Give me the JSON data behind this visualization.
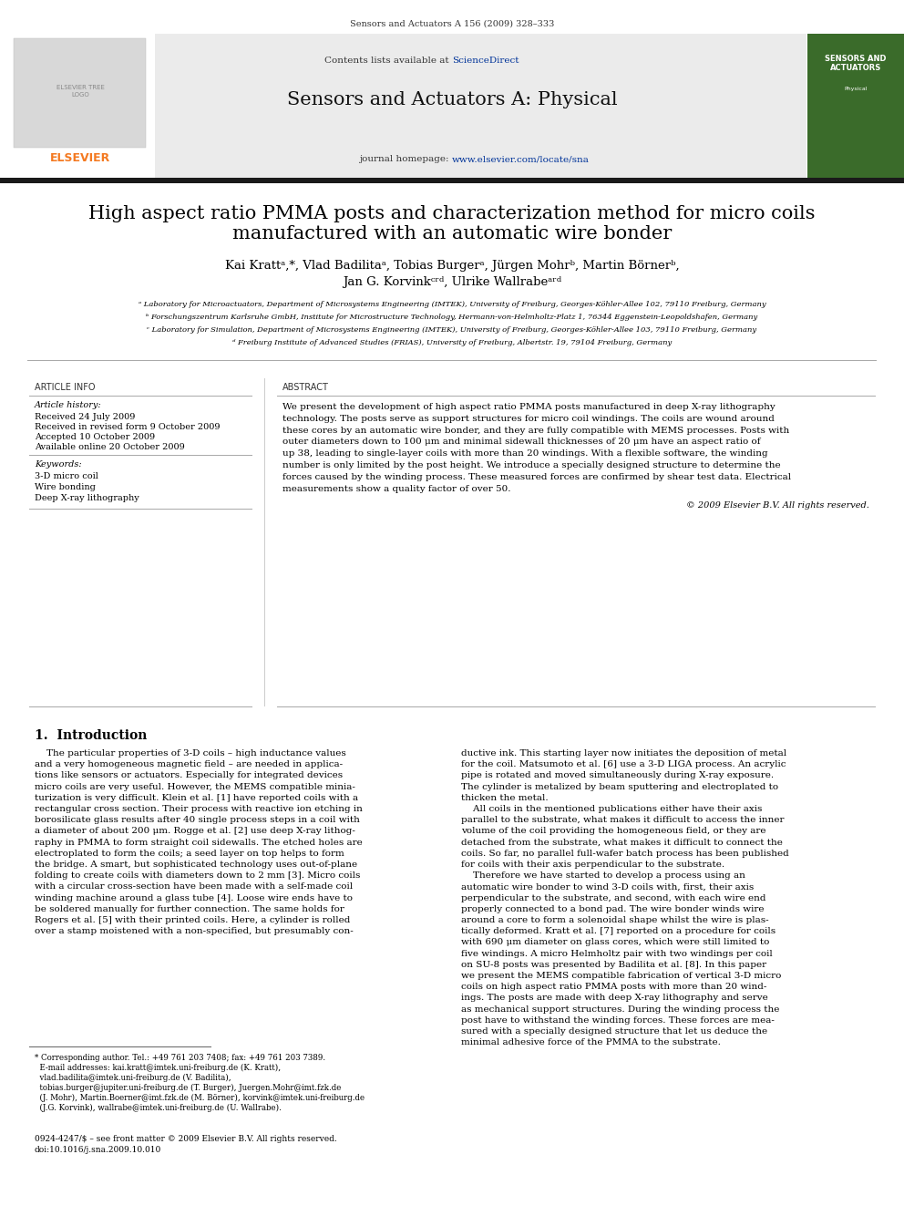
{
  "page_width": 9.92,
  "page_height": 13.23,
  "dpi": 100,
  "bg_color": "#ffffff",
  "header_journal_ref": "Sensors and Actuators A 156 (2009) 328–333",
  "header_contents_pre": "Contents lists available at ",
  "header_sciencedirect": "ScienceDirect",
  "header_journal_name": "Sensors and Actuators A: Physical",
  "header_homepage_pre": "journal homepage: ",
  "header_homepage_link": "www.elsevier.com/locate/sna",
  "elsevier_text": "ELSEVIER",
  "title_line1": "High aspect ratio PMMA posts and characterization method for micro coils",
  "title_line2": "manufactured with an automatic wire bonder",
  "authors_line1": "Kai Krattᵃ,*, Vlad Badilitaᵃ, Tobias Burgerᵃ, Jürgen Mohrᵇ, Martin Börnerᵇ,",
  "authors_line2": "Jan G. Korvinkᶜʳᵈ, Ulrike Wallrabeᵃʳᵈ",
  "affil_a": "ᵃ Laboratory for Microactuators, Department of Microsystems Engineering (IMTEK), University of Freiburg, Georges-Köhler-Allee 102, 79110 Freiburg, Germany",
  "affil_b": "ᵇ Forschungszentrum Karlsruhe GmbH, Institute for Microstructure Technology, Hermann-von-Helmholtz-Platz 1, 76344 Eggenstein-Leopoldshafen, Germany",
  "affil_c": "ᶜ Laboratory for Simulation, Department of Microsystems Engineering (IMTEK), University of Freiburg, Georges-Köhler-Allee 103, 79110 Freiburg, Germany",
  "affil_d": "ᵈ Freiburg Institute of Advanced Studies (FRIAS), University of Freiburg, Albertstr. 19, 79104 Freiburg, Germany",
  "article_info_title": "ARTICLE INFO",
  "article_history_title": "Article history:",
  "received": "Received 24 July 2009",
  "received_revised": "Received in revised form 9 October 2009",
  "accepted": "Accepted 10 October 2009",
  "available_online": "Available online 20 October 2009",
  "keywords_title": "Keywords:",
  "keywords": [
    "3-D micro coil",
    "Wire bonding",
    "Deep X-ray lithography"
  ],
  "abstract_title": "ABSTRACT",
  "abstract_lines": [
    "We present the development of high aspect ratio PMMA posts manufactured in deep X-ray lithography",
    "technology. The posts serve as support structures for micro coil windings. The coils are wound around",
    "these cores by an automatic wire bonder, and they are fully compatible with MEMS processes. Posts with",
    "outer diameters down to 100 μm and minimal sidewall thicknesses of 20 μm have an aspect ratio of",
    "up 38, leading to single-layer coils with more than 20 windings. With a flexible software, the winding",
    "number is only limited by the post height. We introduce a specially designed structure to determine the",
    "forces caused by the winding process. These measured forces are confirmed by shear test data. Electrical",
    "measurements show a quality factor of over 50."
  ],
  "copyright": "© 2009 Elsevier B.V. All rights reserved.",
  "intro_title": "1.  Introduction",
  "intro_col1_lines": [
    "    The particular properties of 3-D coils – high inductance values",
    "and a very homogeneous magnetic field – are needed in applica-",
    "tions like sensors or actuators. Especially for integrated devices",
    "micro coils are very useful. However, the MEMS compatible minia-",
    "turization is very difficult. Klein et al. [1] have reported coils with a",
    "rectangular cross section. Their process with reactive ion etching in",
    "borosilicate glass results after 40 single process steps in a coil with",
    "a diameter of about 200 μm. Rogge et al. [2] use deep X-ray lithog-",
    "raphy in PMMA to form straight coil sidewalls. The etched holes are",
    "electroplated to form the coils; a seed layer on top helps to form",
    "the bridge. A smart, but sophisticated technology uses out-of-plane",
    "folding to create coils with diameters down to 2 mm [3]. Micro coils",
    "with a circular cross-section have been made with a self-made coil",
    "winding machine around a glass tube [4]. Loose wire ends have to",
    "be soldered manually for further connection. The same holds for",
    "Rogers et al. [5] with their printed coils. Here, a cylinder is rolled",
    "over a stamp moistened with a non-specified, but presumably con-"
  ],
  "intro_col2_lines": [
    "ductive ink. This starting layer now initiates the deposition of metal",
    "for the coil. Matsumoto et al. [6] use a 3-D LIGA process. An acrylic",
    "pipe is rotated and moved simultaneously during X-ray exposure.",
    "The cylinder is metalized by beam sputtering and electroplated to",
    "thicken the metal.",
    "    All coils in the mentioned publications either have their axis",
    "parallel to the substrate, what makes it difficult to access the inner",
    "volume of the coil providing the homogeneous field, or they are",
    "detached from the substrate, what makes it difficult to connect the",
    "coils. So far, no parallel full-wafer batch process has been published",
    "for coils with their axis perpendicular to the substrate.",
    "    Therefore we have started to develop a process using an",
    "automatic wire bonder to wind 3-D coils with, first, their axis",
    "perpendicular to the substrate, and second, with each wire end",
    "properly connected to a bond pad. The wire bonder winds wire",
    "around a core to form a solenoidal shape whilst the wire is plas-",
    "tically deformed. Kratt et al. [7] reported on a procedure for coils",
    "with 690 μm diameter on glass cores, which were still limited to",
    "five windings. A micro Helmholtz pair with two windings per coil",
    "on SU-8 posts was presented by Badilita et al. [8]. In this paper",
    "we present the MEMS compatible fabrication of vertical 3-D micro",
    "coils on high aspect ratio PMMA posts with more than 20 wind-",
    "ings. The posts are made with deep X-ray lithography and serve",
    "as mechanical support structures. During the winding process the",
    "post have to withstand the winding forces. These forces are mea-",
    "sured with a specially designed structure that let us deduce the",
    "minimal adhesive force of the PMMA to the substrate."
  ],
  "footnote_lines": [
    "* Corresponding author. Tel.: +49 761 203 7408; fax: +49 761 203 7389.",
    "  E-mail addresses: kai.kratt@imtek.uni-freiburg.de (K. Kratt),",
    "  vlad.badilita@imtek.uni-freiburg.de (V. Badilita),",
    "  tobias.burger@jupiter.uni-freiburg.de (T. Burger), Juergen.Mohr@imt.fzk.de",
    "  (J. Mohr), Martin.Boerner@imt.fzk.de (M. Börner), korvink@imtek.uni-freiburg.de",
    "  (J.G. Korvink), wallrabe@imtek.uni-freiburg.de (U. Wallrabe)."
  ],
  "bottom_ref_lines": [
    "0924-4247/$ – see front matter © 2009 Elsevier B.V. All rights reserved.",
    "doi:10.1016/j.sna.2009.10.010"
  ],
  "elsevier_orange": "#F47920",
  "sciencedirect_blue": "#003399",
  "link_color": "#003399",
  "text_color": "#000000",
  "gray_header_bg": "#ebebeb",
  "cover_green": "#3a6b2a"
}
